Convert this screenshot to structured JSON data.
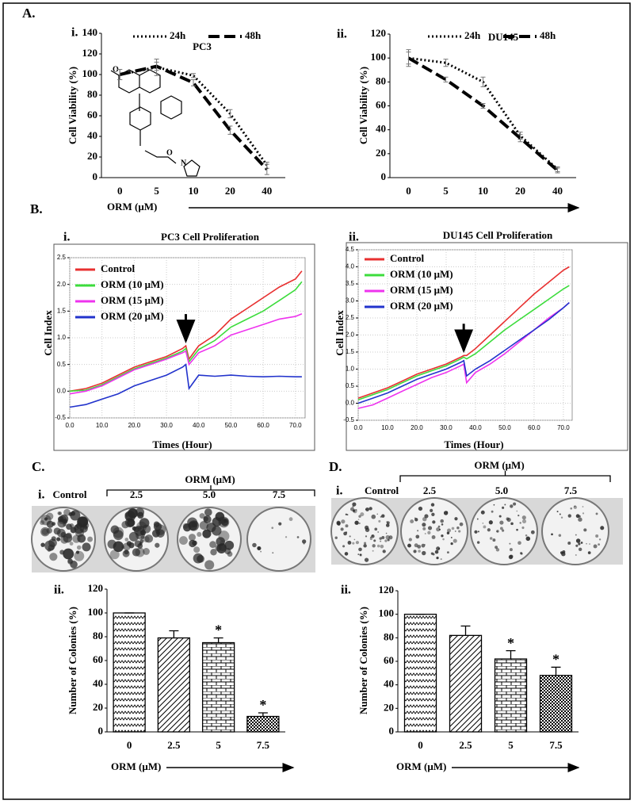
{
  "chart_data": [
    {
      "type": "line",
      "section": "A.",
      "label": "i.",
      "title": "PC3",
      "categories": [
        "0",
        "5",
        "10",
        "20",
        "40"
      ],
      "ylabel": "Cell Viability (%)",
      "xlabel": "ORM (μM)",
      "ylim": [
        0,
        140
      ],
      "yticks": [
        0,
        20,
        40,
        60,
        80,
        100,
        120,
        140
      ],
      "inset_atoms": [
        "O",
        "O",
        "N"
      ],
      "series": [
        {
          "name": "24h",
          "color": "#000000",
          "dash": "dotted",
          "values": [
            100,
            107,
            99,
            62,
            12
          ],
          "errors": [
            5,
            8,
            2,
            4,
            3
          ]
        },
        {
          "name": "48h",
          "color": "#000000",
          "dash": "dashed",
          "values": [
            100,
            108,
            92,
            46,
            8
          ],
          "errors": [
            5,
            4,
            3,
            4,
            5
          ]
        }
      ]
    },
    {
      "type": "line",
      "label": "ii.",
      "title": "DU145",
      "categories": [
        "0",
        "5",
        "10",
        "20",
        "40"
      ],
      "ylabel": "Cell Viability (%)",
      "ylim": [
        0,
        120
      ],
      "yticks": [
        0,
        20,
        40,
        60,
        80,
        100,
        120
      ],
      "series": [
        {
          "name": "24h",
          "color": "#000000",
          "dash": "dotted",
          "values": [
            100,
            96,
            80,
            35,
            7
          ],
          "errors": [
            7,
            3,
            4,
            3,
            2
          ]
        },
        {
          "name": "48h",
          "color": "#000000",
          "dash": "dashed",
          "values": [
            100,
            82,
            60,
            33,
            6
          ],
          "errors": [
            5,
            2,
            2,
            3,
            2
          ]
        }
      ]
    },
    {
      "type": "line",
      "section": "B.",
      "label": "i.",
      "title": "PC3 Cell Proliferation",
      "xlabel": "Times (Hour)",
      "ylabel": "Cell Index",
      "grid": true,
      "arrow_x": 36,
      "x": [
        0,
        5,
        10,
        15,
        20,
        25,
        30,
        35,
        36,
        37,
        40,
        45,
        50,
        55,
        60,
        65,
        70,
        72
      ],
      "xlim": [
        0,
        73
      ],
      "xticks": [
        {
          "value": 0,
          "label": "0.0"
        },
        {
          "value": 10,
          "label": "10.0"
        },
        {
          "value": 20,
          "label": "20.0"
        },
        {
          "value": 30,
          "label": "30.0"
        },
        {
          "value": 40,
          "label": "40.0"
        },
        {
          "value": 50,
          "label": "50.0"
        },
        {
          "value": 60,
          "label": "60.0"
        },
        {
          "value": 70,
          "label": "70.0"
        }
      ],
      "ylim": [
        -0.5,
        2.5
      ],
      "yticks": [
        2.5,
        {
          "value": 2,
          "label": "2.0"
        },
        1.5,
        {
          "value": 1,
          "label": "1.0"
        },
        0.5,
        {
          "value": 0,
          "label": "0.0"
        },
        -0.5
      ],
      "series": [
        {
          "name": "Control",
          "color": "#e83030",
          "dash": "solid",
          "values": [
            0,
            0.05,
            0.15,
            0.3,
            0.45,
            0.55,
            0.65,
            0.8,
            0.85,
            0.6,
            0.85,
            1.05,
            1.35,
            1.55,
            1.75,
            1.95,
            2.1,
            2.25
          ]
        },
        {
          "name": "ORM (10 μM)",
          "color": "#3cdc3c",
          "dash": "solid",
          "values": [
            0,
            0.02,
            0.12,
            0.27,
            0.42,
            0.52,
            0.62,
            0.75,
            0.8,
            0.55,
            0.78,
            0.95,
            1.2,
            1.35,
            1.5,
            1.7,
            1.9,
            2.05
          ]
        },
        {
          "name": "ORM (15 μM)",
          "color": "#ee33ee",
          "dash": "solid",
          "values": [
            -0.05,
            0,
            0.1,
            0.25,
            0.4,
            0.5,
            0.6,
            0.72,
            0.75,
            0.5,
            0.72,
            0.85,
            1.05,
            1.15,
            1.25,
            1.35,
            1.4,
            1.45
          ]
        },
        {
          "name": "ORM (20 μM)",
          "color": "#2233cc",
          "dash": "solid",
          "values": [
            -0.3,
            -0.25,
            -0.15,
            -0.05,
            0.1,
            0.2,
            0.3,
            0.45,
            0.5,
            0.05,
            0.3,
            0.28,
            0.3,
            0.28,
            0.27,
            0.28,
            0.27,
            0.27
          ]
        }
      ]
    },
    {
      "type": "line",
      "label": "ii.",
      "title": "DU145  Cell Proliferation",
      "xlabel": "Times (Hour)",
      "ylabel": "Cell Index",
      "grid": true,
      "arrow_x": 36,
      "x": [
        0,
        5,
        10,
        15,
        20,
        25,
        30,
        35,
        36,
        37,
        40,
        45,
        50,
        55,
        60,
        65,
        70,
        72
      ],
      "xlim": [
        0,
        73
      ],
      "xticks": [
        {
          "value": 0,
          "label": "0.0"
        },
        {
          "value": 10,
          "label": "10.0"
        },
        {
          "value": 20,
          "label": "20.0"
        },
        {
          "value": 30,
          "label": "30.0"
        },
        {
          "value": 40,
          "label": "40.0"
        },
        {
          "value": 50,
          "label": "50.0"
        },
        {
          "value": 60,
          "label": "60.0"
        },
        {
          "value": 70,
          "label": "70.0"
        }
      ],
      "ylim": [
        -0.5,
        4.5
      ],
      "yticks": [
        4.5,
        {
          "value": 4,
          "label": "4.0"
        },
        3.5,
        {
          "value": 3,
          "label": "3.0"
        },
        2.5,
        {
          "value": 2,
          "label": "2.0"
        },
        1.5,
        {
          "value": 1,
          "label": "1.0"
        },
        0.5,
        {
          "value": 0,
          "label": "0.0"
        },
        -0.5
      ],
      "series": [
        {
          "name": "Control",
          "color": "#e83030",
          "dash": "solid",
          "values": [
            0.15,
            0.3,
            0.45,
            0.65,
            0.85,
            1.0,
            1.15,
            1.35,
            1.4,
            1.4,
            1.6,
            2.0,
            2.4,
            2.8,
            3.2,
            3.55,
            3.9,
            4.0
          ]
        },
        {
          "name": "ORM (10 μM)",
          "color": "#3cdc3c",
          "dash": "solid",
          "values": [
            0.1,
            0.25,
            0.4,
            0.6,
            0.8,
            0.95,
            1.1,
            1.3,
            1.35,
            1.3,
            1.45,
            1.8,
            2.15,
            2.45,
            2.75,
            3.05,
            3.35,
            3.45
          ]
        },
        {
          "name": "ORM (15 μM)",
          "color": "#ee33ee",
          "dash": "solid",
          "values": [
            -0.15,
            -0.05,
            0.15,
            0.35,
            0.55,
            0.75,
            0.9,
            1.1,
            1.15,
            0.6,
            0.9,
            1.15,
            1.45,
            1.8,
            2.15,
            2.5,
            2.8,
            2.95
          ]
        },
        {
          "name": "ORM (20 μM)",
          "color": "#2233cc",
          "dash": "solid",
          "values": [
            0,
            0.15,
            0.3,
            0.5,
            0.7,
            0.85,
            1.0,
            1.2,
            1.25,
            0.8,
            1.0,
            1.25,
            1.55,
            1.85,
            2.15,
            2.45,
            2.8,
            2.95
          ]
        }
      ]
    },
    {
      "type": "bar",
      "label": "ii.",
      "categories": [
        "0",
        "2.5",
        "5",
        "7.5"
      ],
      "values": [
        100,
        79,
        75,
        13
      ],
      "errors": [
        0,
        6,
        4,
        3
      ],
      "fills": [
        "zigzag",
        "diagonal",
        "brick",
        "checker"
      ],
      "annotations": [
        {
          "category": "5",
          "text": "*"
        },
        {
          "category": "7.5",
          "text": "*"
        }
      ],
      "ylabel": "Number of Colonies (%)",
      "xlabel": "ORM (μM)",
      "ylim": [
        0,
        120
      ],
      "yticks": [
        0,
        20,
        40,
        60,
        80,
        100,
        120
      ]
    },
    {
      "type": "bar",
      "label": "ii.",
      "categories": [
        "0",
        "2.5",
        "5",
        "7.5"
      ],
      "values": [
        100,
        82,
        62,
        48
      ],
      "errors": [
        0,
        8,
        7,
        7
      ],
      "fills": [
        "zigzag",
        "diagonal",
        "brick",
        "checker"
      ],
      "annotations": [
        {
          "category": "5",
          "text": "*"
        },
        {
          "category": "7.5",
          "text": "*"
        }
      ],
      "ylabel": "Number of Colonies (%)",
      "xlabel": "ORM (μM)",
      "ylim": [
        0,
        120
      ],
      "yticks": [
        0,
        20,
        40,
        60,
        80,
        100,
        120
      ]
    }
  ],
  "colony_assays": [
    {
      "section": "C.",
      "label": "i.",
      "header": "ORM (μM)",
      "dishes": [
        "Control",
        "2.5",
        "5.0",
        "7.5"
      ]
    },
    {
      "section": "D.",
      "label": "i.",
      "header": "ORM (μM)",
      "dishes": [
        "Control",
        "2.5",
        "5.0",
        "7.5"
      ]
    }
  ]
}
